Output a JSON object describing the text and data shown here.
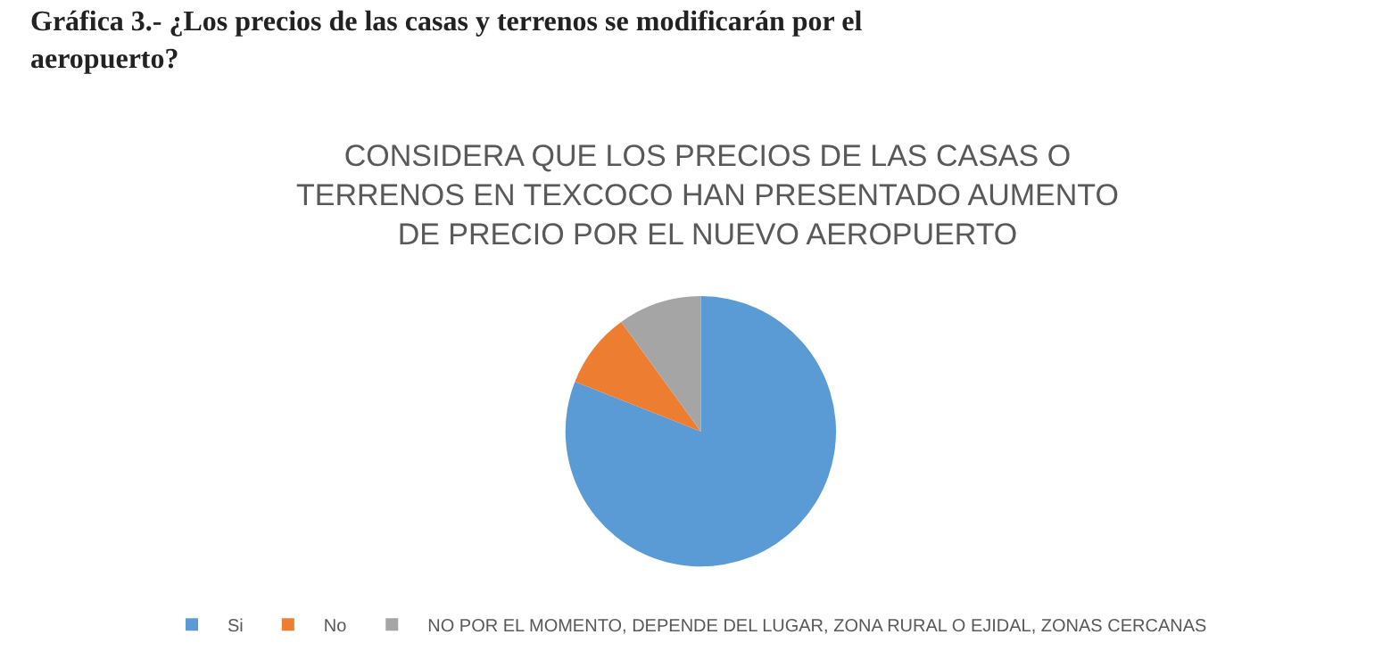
{
  "chart_data": {
    "type": "pie",
    "title": "Gráfica 3.- ¿Los precios de las casas y terrenos se modificarán por el aeropuerto?",
    "subtitle": "CONSIDERA QUE LOS PRECIOS DE LAS CASAS O TERRENOS EN TEXCOCO HAN PRESENTADO AUMENTO DE PRECIO POR EL NUEVO AEROPUERTO",
    "categories": [
      "Si",
      "No",
      "NO POR EL MOMENTO, DEPENDE DEL LUGAR, ZONA RURAL O EJIDAL, ZONAS CERCANAS"
    ],
    "values": [
      81,
      9,
      10
    ],
    "colors": [
      "#5b9bd5",
      "#ed7d31",
      "#a5a5a5"
    ],
    "legend": "bottom"
  }
}
